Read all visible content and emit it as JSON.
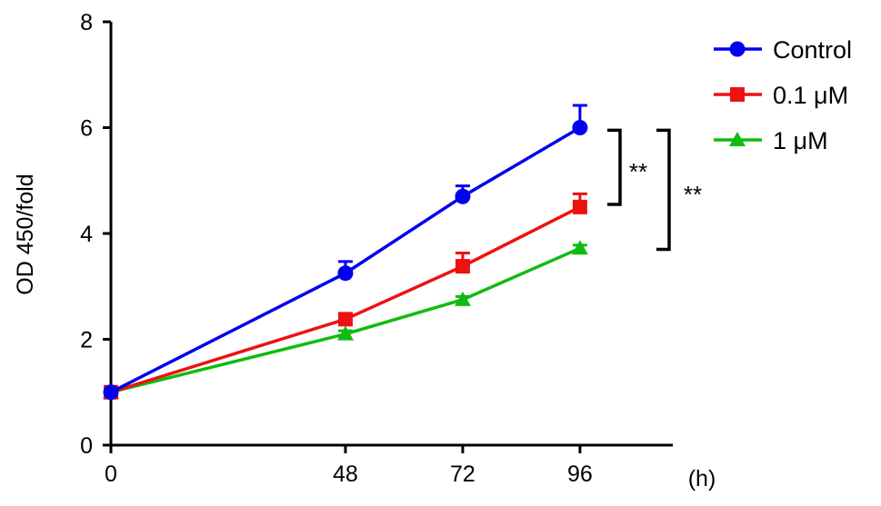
{
  "chart_data": {
    "type": "line",
    "title": "",
    "xlabel": "(h)",
    "ylabel": "OD 450/fold",
    "x": [
      0,
      48,
      72,
      96
    ],
    "xticks": [
      "0",
      "48",
      "72",
      "96"
    ],
    "xlim": [
      0,
      115
    ],
    "ylim": [
      0,
      8
    ],
    "yticks": [
      "0",
      "2",
      "4",
      "6",
      "8"
    ],
    "grid": false,
    "legend_position": "top-right",
    "series": [
      {
        "name": "Control",
        "color": "#0000ee",
        "marker": "circle",
        "values": [
          1.0,
          3.25,
          4.7,
          6.0
        ],
        "error": [
          0.05,
          0.22,
          0.2,
          0.42
        ]
      },
      {
        "name": "0.1 μM",
        "color": "#ee1111",
        "marker": "square",
        "values": [
          1.0,
          2.38,
          3.38,
          4.5
        ],
        "error": [
          0.05,
          0.08,
          0.25,
          0.25
        ]
      },
      {
        "name": "1 μM",
        "color": "#11bb11",
        "marker": "triangle",
        "values": [
          1.0,
          2.1,
          2.75,
          3.72
        ],
        "error": [
          0.04,
          0.06,
          0.06,
          0.06
        ]
      }
    ],
    "annotations": [
      {
        "label": "**",
        "from_series": "Control",
        "to_series": "0.1 μM",
        "x": 96
      },
      {
        "label": "**",
        "from_series": "Control",
        "to_series": "1 μM",
        "x": 96
      }
    ]
  }
}
